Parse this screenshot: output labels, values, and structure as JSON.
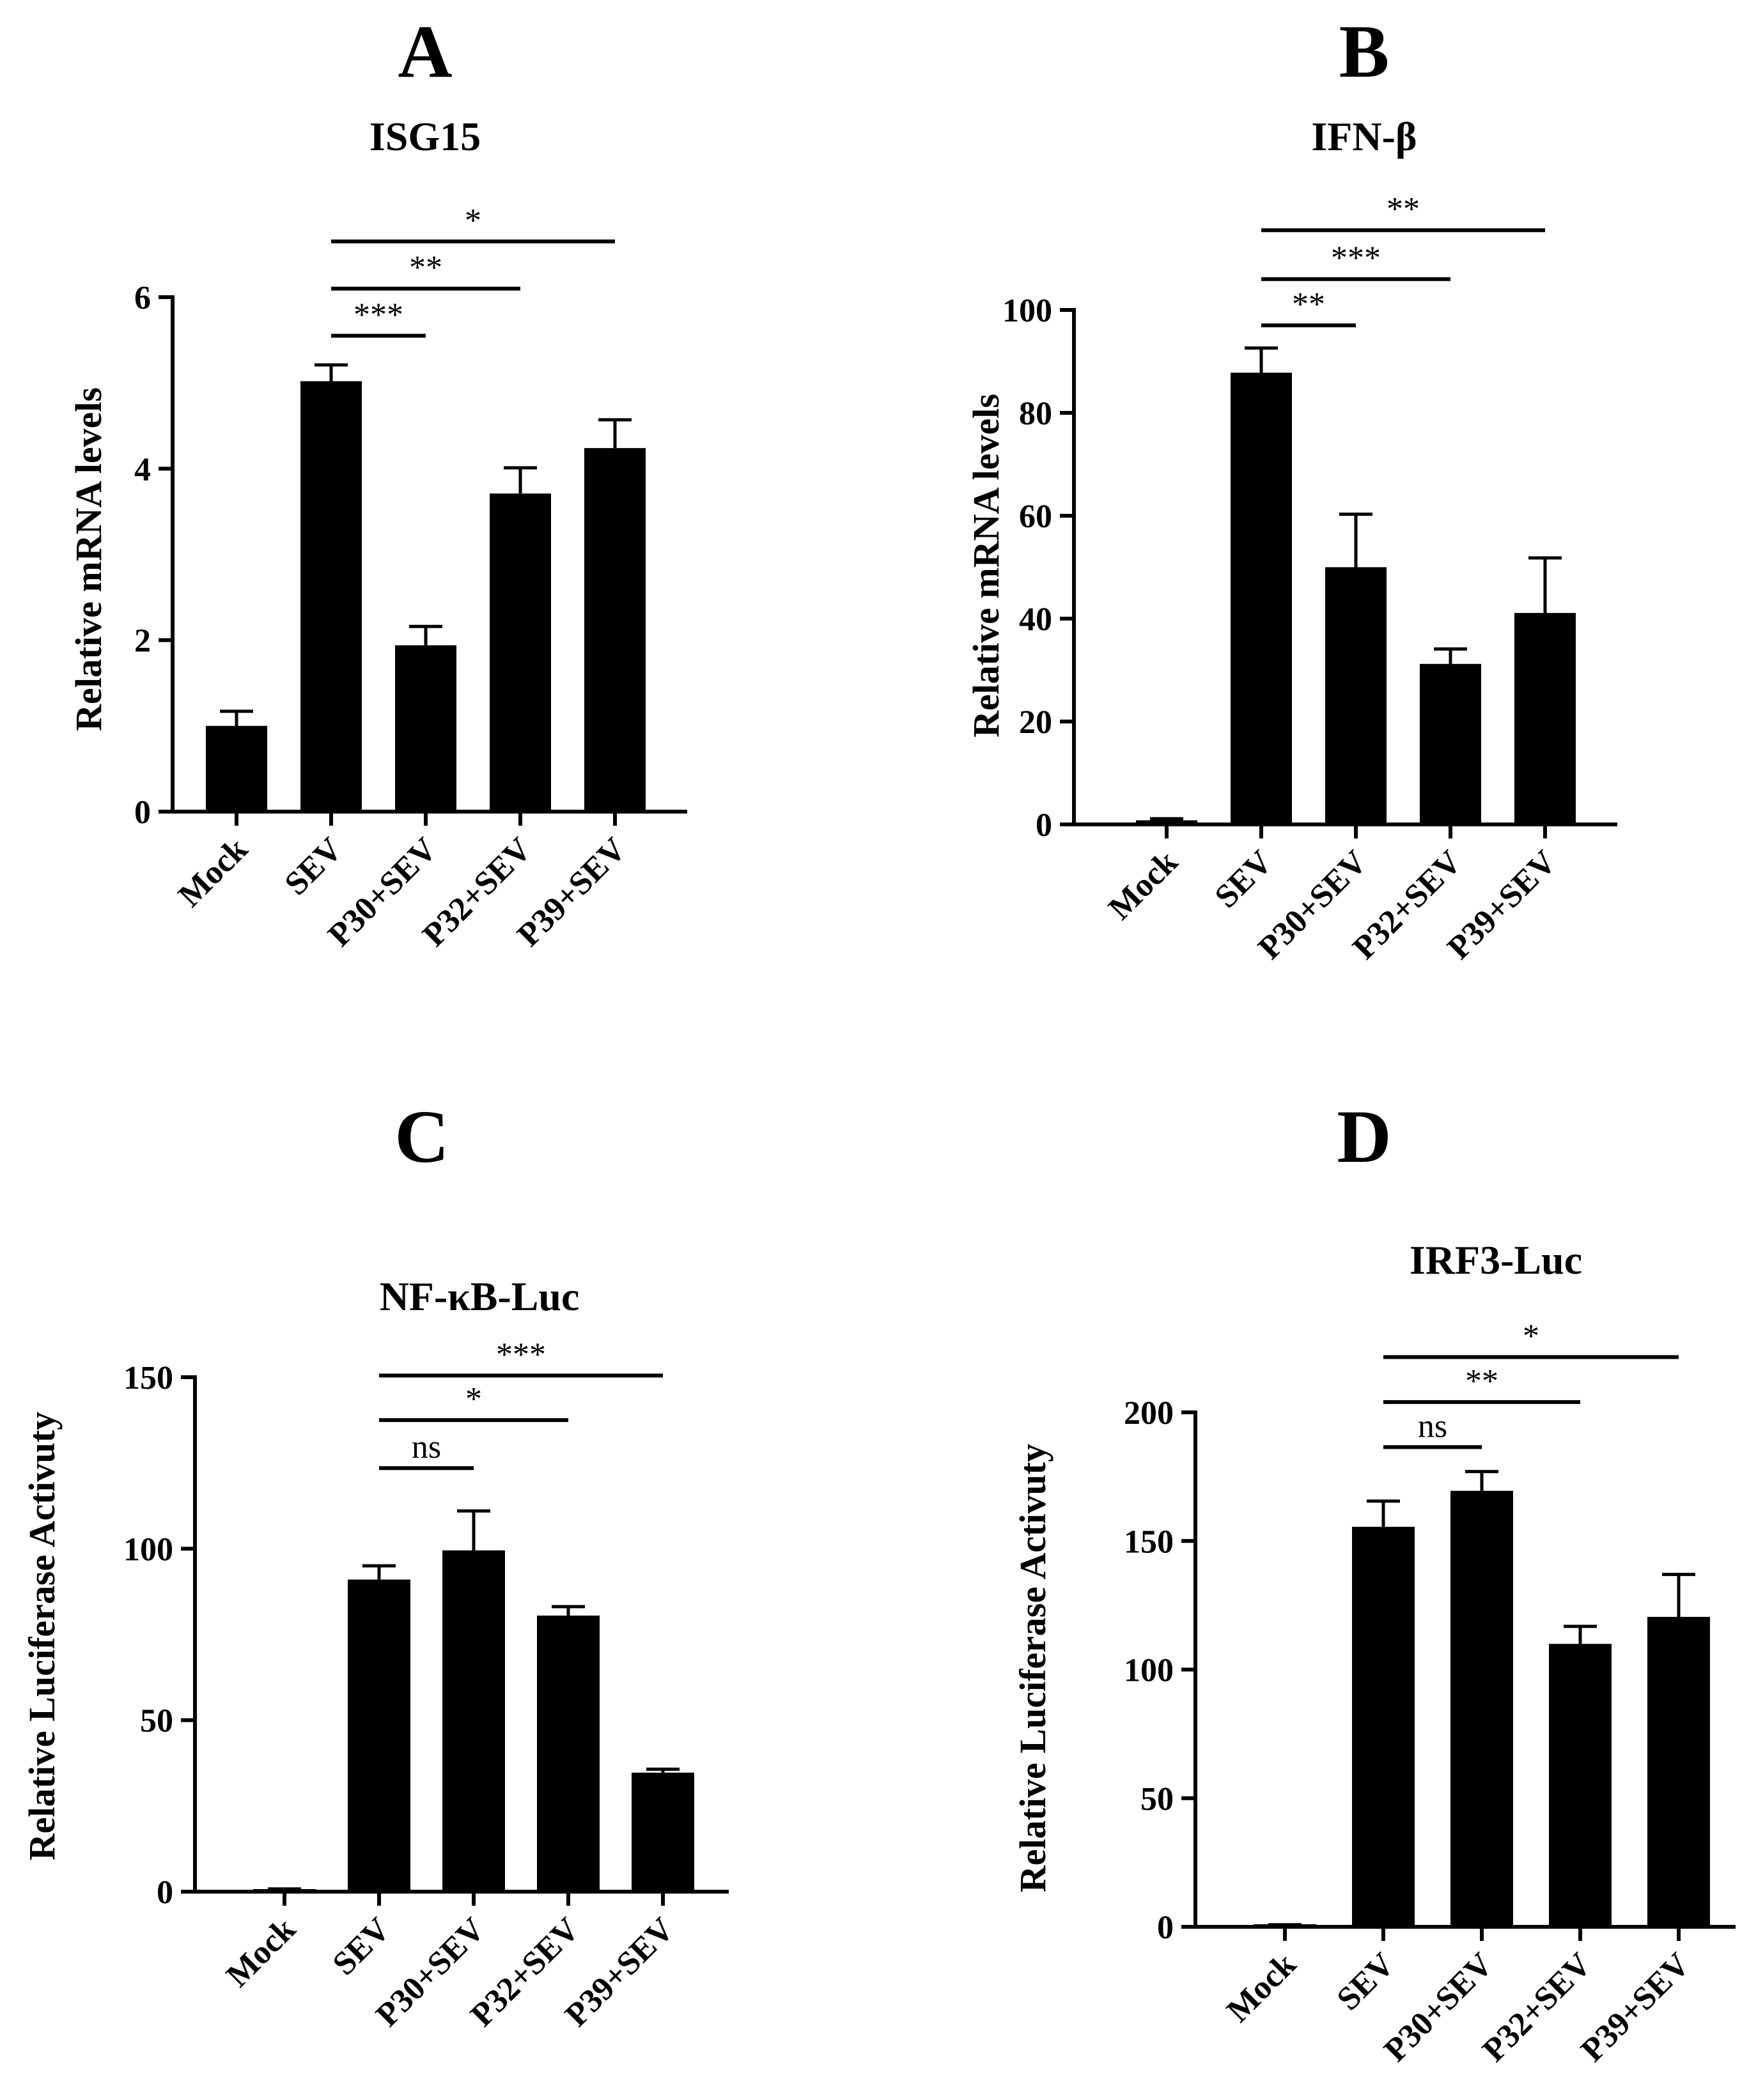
{
  "colors": {
    "bar": "#000000",
    "axis": "#000000",
    "background": "#ffffff"
  },
  "chart_data": [
    {
      "panel": "A",
      "type": "bar",
      "title": "ISG15",
      "ylabel": "Relative mRNA levels",
      "xlabel": "",
      "categories": [
        "Mock",
        "SEV",
        "P30+SEV",
        "P32+SEV",
        "P39+SEV"
      ],
      "values": [
        1.0,
        5.02,
        1.94,
        3.71,
        4.24
      ],
      "errors": [
        0.17,
        0.19,
        0.22,
        0.3,
        0.33
      ],
      "ylim": [
        0,
        6
      ],
      "yticks": [
        0,
        2,
        4,
        6
      ],
      "ytick_labels": [
        "0",
        "2",
        "4",
        "6"
      ],
      "grid": false,
      "significance": [
        {
          "from": 1,
          "to": 2,
          "label": "***",
          "y": 5.55
        },
        {
          "from": 1,
          "to": 3,
          "label": "**",
          "y": 6.1
        },
        {
          "from": 1,
          "to": 4,
          "label": "*",
          "y": 6.65
        }
      ]
    },
    {
      "panel": "B",
      "type": "bar",
      "title": "IFN-β",
      "ylabel": "Relative mRNA levels",
      "xlabel": "",
      "categories": [
        "Mock",
        "SEV",
        "P30+SEV",
        "P32+SEV",
        "P39+SEV"
      ],
      "values": [
        0.8,
        87.8,
        50.0,
        31.2,
        41.1
      ],
      "errors": [
        0.3,
        4.8,
        10.3,
        2.9,
        10.7
      ],
      "ylim": [
        0,
        100
      ],
      "yticks": [
        0,
        20,
        40,
        60,
        80,
        100
      ],
      "ytick_labels": [
        "0",
        "20",
        "40",
        "60",
        "80",
        "100"
      ],
      "grid": false,
      "significance": [
        {
          "from": 1,
          "to": 2,
          "label": "**",
          "y": 97
        },
        {
          "from": 1,
          "to": 3,
          "label": "***",
          "y": 106
        },
        {
          "from": 1,
          "to": 4,
          "label": "**",
          "y": 115.5
        }
      ]
    },
    {
      "panel": "C",
      "type": "bar",
      "title": "NF-κB-Luc",
      "ylabel": "Relative Luciferase Activuty",
      "xlabel": "",
      "categories": [
        "Mock",
        "SEV",
        "P30+SEV",
        "P32+SEV",
        "P39+SEV"
      ],
      "values": [
        0.5,
        91.0,
        99.5,
        80.5,
        34.7
      ],
      "errors": [
        0.3,
        4.0,
        11.5,
        2.6,
        1.0
      ],
      "ylim": [
        0,
        150
      ],
      "yticks": [
        0,
        50,
        100,
        150
      ],
      "ytick_labels": [
        "0",
        "50",
        "100",
        "150"
      ],
      "grid": false,
      "significance": [
        {
          "from": 1,
          "to": 2,
          "label": "ns",
          "y": 123.5
        },
        {
          "from": 1,
          "to": 3,
          "label": "*",
          "y": 137.5
        },
        {
          "from": 1,
          "to": 4,
          "label": "***",
          "y": 150.5
        }
      ]
    },
    {
      "panel": "D",
      "type": "bar",
      "title": "IRF3-Luc",
      "ylabel": "Relative Luciferase Activuty",
      "xlabel": "",
      "categories": [
        "Mock",
        "SEV",
        "P30+SEV",
        "P32+SEV",
        "P39+SEV"
      ],
      "values": [
        0.5,
        155.5,
        169.5,
        110.0,
        120.5
      ],
      "errors": [
        0.3,
        10.0,
        7.5,
        6.8,
        16.5
      ],
      "ylim": [
        0,
        200
      ],
      "yticks": [
        0,
        50,
        100,
        150,
        200
      ],
      "ytick_labels": [
        "0",
        "50",
        "100",
        "150",
        "200"
      ],
      "grid": false,
      "significance": [
        {
          "from": 1,
          "to": 2,
          "label": "ns",
          "y": 186.5
        },
        {
          "from": 1,
          "to": 3,
          "label": "**",
          "y": 204
        },
        {
          "from": 1,
          "to": 4,
          "label": "*",
          "y": 221.5
        }
      ]
    }
  ]
}
